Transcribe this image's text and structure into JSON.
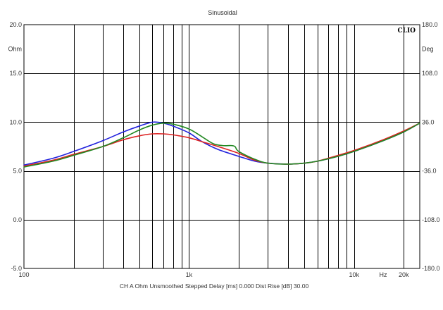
{
  "chart_data": {
    "type": "line",
    "title": "Sinusoidal",
    "logo": "CLIO",
    "x_axis": {
      "scale": "log",
      "range": [
        100,
        25000
      ],
      "tick_labels": [
        {
          "value": 100,
          "label": "100"
        },
        {
          "value": 1000,
          "label": "1k"
        },
        {
          "value": 10000,
          "label": "10k"
        },
        {
          "value": 15000,
          "label": "Hz"
        },
        {
          "value": 20000,
          "label": "20k"
        }
      ],
      "grid": true
    },
    "y_left": {
      "unit": "Ohm",
      "range": [
        -5,
        20
      ],
      "tick_labels": [
        {
          "value": 20,
          "label": "20.0"
        },
        {
          "value": 15,
          "label": "15.0"
        },
        {
          "value": 10,
          "label": "10.0"
        },
        {
          "value": 5,
          "label": "5.0"
        },
        {
          "value": 0,
          "label": "0.0"
        },
        {
          "value": -5,
          "label": "-5.0"
        }
      ],
      "unit_at": 17.5,
      "grid": true
    },
    "y_right": {
      "unit": "Deg",
      "range": [
        -180,
        180
      ],
      "tick_labels": [
        {
          "value": 180,
          "label": "180.0"
        },
        {
          "value": 108,
          "label": "108.0"
        },
        {
          "value": 36,
          "label": "36.0"
        },
        {
          "value": -36,
          "label": "-36.0"
        },
        {
          "value": -108,
          "label": "-108.0"
        },
        {
          "value": -180,
          "label": "-180.0"
        }
      ],
      "unit_at": 144
    },
    "footer": "CH A   Ohm   Unsmoothed   Stepped    Delay [ms] 0.000    Dist Rise [dB] 30.00",
    "series": [
      {
        "color": "#2222dd",
        "points": [
          [
            100,
            5.6
          ],
          [
            150,
            6.3
          ],
          [
            200,
            7.0
          ],
          [
            300,
            8.1
          ],
          [
            400,
            9.0
          ],
          [
            500,
            9.6
          ],
          [
            600,
            10.0
          ],
          [
            700,
            9.9
          ],
          [
            800,
            9.6
          ],
          [
            1000,
            8.9
          ],
          [
            1200,
            8.0
          ],
          [
            1500,
            7.2
          ],
          [
            2000,
            6.5
          ],
          [
            2500,
            6.0
          ],
          [
            3000,
            5.8
          ],
          [
            4000,
            5.7
          ],
          [
            5000,
            5.8
          ],
          [
            6000,
            6.0
          ],
          [
            8000,
            6.5
          ],
          [
            10000,
            7.0
          ],
          [
            15000,
            8.1
          ],
          [
            20000,
            9.0
          ],
          [
            25000,
            9.9
          ]
        ]
      },
      {
        "color": "#dd2222",
        "points": [
          [
            100,
            5.5
          ],
          [
            150,
            6.1
          ],
          [
            200,
            6.7
          ],
          [
            300,
            7.5
          ],
          [
            400,
            8.2
          ],
          [
            500,
            8.6
          ],
          [
            600,
            8.8
          ],
          [
            700,
            8.8
          ],
          [
            800,
            8.7
          ],
          [
            1000,
            8.4
          ],
          [
            1200,
            8.0
          ],
          [
            1500,
            7.5
          ],
          [
            2000,
            6.8
          ],
          [
            2500,
            6.1
          ],
          [
            3000,
            5.8
          ],
          [
            4000,
            5.7
          ],
          [
            5000,
            5.8
          ],
          [
            6000,
            6.0
          ],
          [
            8000,
            6.6
          ],
          [
            10000,
            7.1
          ],
          [
            15000,
            8.2
          ],
          [
            20000,
            9.1
          ],
          [
            25000,
            9.9
          ]
        ]
      },
      {
        "color": "#228822",
        "points": [
          [
            100,
            5.4
          ],
          [
            150,
            6.0
          ],
          [
            200,
            6.6
          ],
          [
            300,
            7.5
          ],
          [
            400,
            8.4
          ],
          [
            500,
            9.2
          ],
          [
            600,
            9.7
          ],
          [
            700,
            9.9
          ],
          [
            800,
            9.8
          ],
          [
            1000,
            9.3
          ],
          [
            1200,
            8.5
          ],
          [
            1400,
            7.8
          ],
          [
            1600,
            7.6
          ],
          [
            1800,
            7.6
          ],
          [
            1900,
            7.5
          ],
          [
            2000,
            7.0
          ],
          [
            2500,
            6.2
          ],
          [
            3000,
            5.8
          ],
          [
            4000,
            5.7
          ],
          [
            5000,
            5.8
          ],
          [
            6000,
            6.0
          ],
          [
            8000,
            6.5
          ],
          [
            10000,
            7.0
          ],
          [
            15000,
            8.1
          ],
          [
            20000,
            9.0
          ],
          [
            25000,
            9.9
          ]
        ]
      }
    ]
  }
}
